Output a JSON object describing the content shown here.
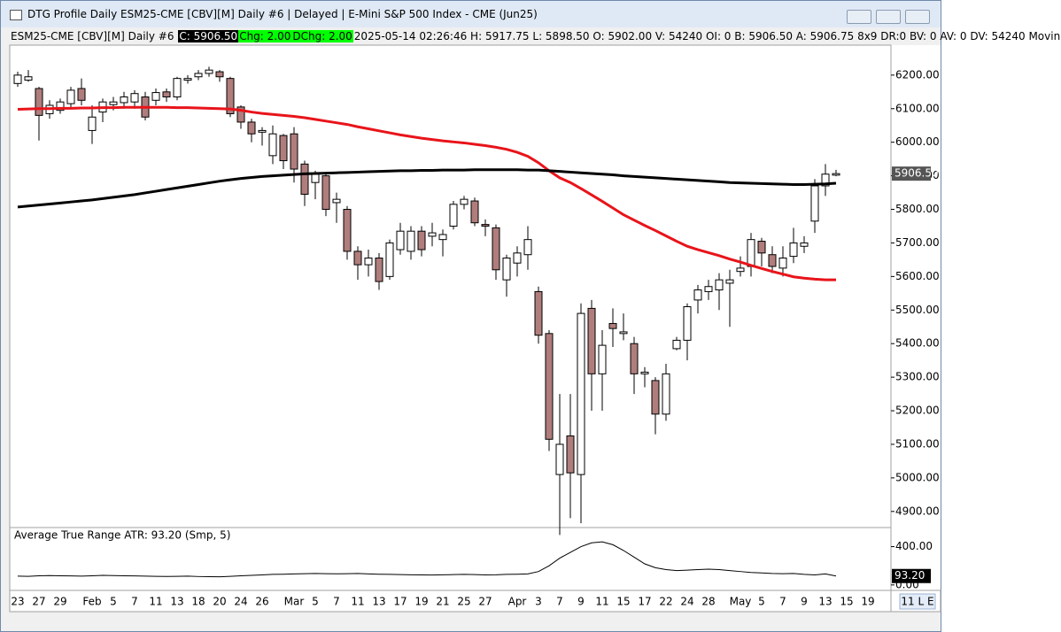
{
  "window": {
    "title": "DTG Profile Daily ESM25-CME [CBV][M]  Daily #6 | Delayed | E-Mini S&P 500 Index - CME (Jun25)"
  },
  "info_bar": {
    "symbol": "ESM25-CME [CBV][M]  Daily #6",
    "close": "C: 5906.50",
    "change": "Chg: 2.00",
    "dchange": "DChg: 2.00",
    "details": "2025-05-14 02:26:46 H: 5917.75 L: 5898.50 O: 5902.00 V: 54240 OI: 0 B: 5906.50 A: 5906.75 8x9 DR:0 BV: 0 AV: 0 DV: 54240 Movin"
  },
  "status": "11 L E",
  "chart_data": [
    {
      "type": "candlestick",
      "categories": [
        "23",
        null,
        "27",
        null,
        "29",
        null,
        null,
        "Feb",
        null,
        "5",
        null,
        "7",
        null,
        "11",
        null,
        "13",
        null,
        "18",
        null,
        "20",
        null,
        "24",
        null,
        "26",
        null,
        null,
        "Mar",
        null,
        "5",
        null,
        "7",
        null,
        "11",
        null,
        "13",
        null,
        "17",
        null,
        "19",
        null,
        "21",
        null,
        "25",
        null,
        "27",
        null,
        null,
        "Apr",
        null,
        "3",
        null,
        "7",
        null,
        "9",
        null,
        "11",
        null,
        "15",
        null,
        "17",
        null,
        "22",
        null,
        "24",
        null,
        "28",
        null,
        null,
        "May",
        null,
        "5",
        null,
        "7",
        null,
        "9",
        null,
        "13",
        null,
        "15",
        null,
        "19"
      ],
      "open": [
        6175,
        6185,
        6160,
        6085,
        6095,
        6115,
        6160,
        6035,
        6090,
        6112,
        6118,
        6120,
        6135,
        6125,
        6150,
        6135,
        6185,
        6195,
        6205,
        6210,
        6190,
        6105,
        6060,
        6030,
        5960,
        6020,
        6025,
        5935,
        5880,
        5900,
        5820,
        5800,
        5675,
        5635,
        5655,
        5600,
        5680,
        5675,
        5735,
        5720,
        5710,
        5750,
        5815,
        5825,
        5755,
        5745,
        5590,
        5640,
        5665,
        5555,
        5430,
        5010,
        5125,
        5010,
        5505,
        5310,
        5460,
        5430,
        5400,
        5310,
        5290,
        5190,
        5385,
        5410,
        5530,
        5555,
        5560,
        5580,
        5615,
        5630,
        5705,
        5665,
        5625,
        5660,
        5690,
        5765,
        5870,
        5902,
        null,
        null,
        null
      ],
      "high": [
        6210,
        6215,
        6165,
        6125,
        6130,
        6165,
        6190,
        6110,
        6130,
        6135,
        6150,
        6155,
        6150,
        6160,
        6160,
        6195,
        6200,
        6215,
        6225,
        6215,
        6195,
        6110,
        6070,
        6045,
        6050,
        6025,
        6045,
        5945,
        5915,
        5910,
        5850,
        5810,
        5690,
        5680,
        5670,
        5710,
        5760,
        5750,
        5750,
        5760,
        5740,
        5825,
        5840,
        5835,
        5770,
        5755,
        5665,
        5690,
        5750,
        5570,
        5440,
        5250,
        5250,
        5520,
        5530,
        5440,
        5505,
        5490,
        5420,
        5330,
        5300,
        5340,
        5420,
        5520,
        5575,
        5590,
        5610,
        5620,
        5660,
        5730,
        5715,
        5690,
        5690,
        5745,
        5720,
        5890,
        5935,
        5917.75,
        null,
        null,
        null
      ],
      "low": [
        6165,
        6180,
        6005,
        6070,
        6085,
        6100,
        6110,
        5995,
        6060,
        6095,
        6100,
        6100,
        6065,
        6110,
        6120,
        6125,
        6175,
        6185,
        6195,
        6180,
        6075,
        6040,
        6000,
        5990,
        5935,
        5920,
        5880,
        5810,
        5830,
        5780,
        5760,
        5650,
        5590,
        5600,
        5560,
        5590,
        5665,
        5650,
        5660,
        5690,
        5660,
        5740,
        5800,
        5750,
        5720,
        5590,
        5540,
        5600,
        5620,
        5400,
        5080,
        4830,
        4880,
        4865,
        5200,
        5200,
        5390,
        5410,
        5250,
        5270,
        5130,
        5170,
        5380,
        5350,
        5490,
        5530,
        5500,
        5450,
        5600,
        5600,
        5630,
        5610,
        5600,
        5640,
        5670,
        5730,
        5840,
        5898.5,
        null,
        null,
        null
      ],
      "close": [
        6200,
        6195,
        6080,
        6110,
        6120,
        6155,
        6125,
        6075,
        6120,
        6120,
        6135,
        6145,
        6075,
        6148,
        6135,
        6190,
        6190,
        6205,
        6215,
        6195,
        6085,
        6060,
        6025,
        6035,
        6025,
        5945,
        5920,
        5845,
        5905,
        5800,
        5830,
        5675,
        5635,
        5655,
        5585,
        5700,
        5735,
        5735,
        5680,
        5730,
        5725,
        5815,
        5830,
        5760,
        5750,
        5620,
        5655,
        5670,
        5710,
        5425,
        5115,
        5100,
        5015,
        5490,
        5310,
        5395,
        5445,
        5435,
        5310,
        5315,
        5190,
        5310,
        5410,
        5510,
        5560,
        5570,
        5590,
        5590,
        5625,
        5710,
        5670,
        5630,
        5655,
        5700,
        5700,
        5870,
        5905,
        5906.5,
        null,
        null,
        null
      ],
      "close_labels": [
        null,
        null,
        null,
        null,
        null,
        null,
        null,
        null,
        null,
        null,
        null,
        null,
        null,
        null,
        null,
        null,
        null,
        null,
        null,
        null,
        null,
        null,
        null,
        null,
        null,
        null,
        null,
        null,
        null,
        null,
        null,
        null,
        null,
        null,
        null,
        null,
        null,
        null,
        null,
        null,
        null,
        null,
        null,
        null,
        null,
        null,
        null,
        null,
        null,
        null,
        null,
        null,
        null,
        null,
        null,
        null,
        null,
        null,
        null,
        null,
        null,
        null,
        null,
        null,
        null,
        null,
        null,
        null,
        null,
        null,
        null,
        null,
        null,
        null,
        null,
        null,
        null,
        "5906.50",
        null,
        null,
        null
      ],
      "up_color": "#ffffff",
      "down_color": "#b07d7d",
      "overlays": [
        {
          "color": "#e8141a",
          "values": [
            6098,
            6099,
            6100,
            6100,
            6101,
            6101,
            6102,
            6102,
            6103,
            6103,
            6104,
            6104,
            6104,
            6104,
            6104,
            6103,
            6103,
            6102,
            6101,
            6100,
            6099,
            6095,
            6090,
            6086,
            6083,
            6080,
            6077,
            6073,
            6068,
            6063,
            6058,
            6053,
            6046,
            6040,
            6034,
            6028,
            6022,
            6017,
            6012,
            6008,
            6004,
            6001,
            5998,
            5994,
            5990,
            5985,
            5979,
            5970,
            5958,
            5939,
            5915,
            5894,
            5880,
            5862,
            5843,
            5824,
            5804,
            5784,
            5768,
            5752,
            5737,
            5721,
            5705,
            5690,
            5680,
            5671,
            5662,
            5652,
            5643,
            5633,
            5624,
            5615,
            5607,
            5599,
            5595,
            5592,
            5590,
            5590,
            null,
            null,
            null
          ]
        },
        {
          "color": "#000000",
          "values": [
            5807,
            5810,
            5813,
            5816,
            5819,
            5822,
            5825,
            5828,
            5832,
            5836,
            5840,
            5844,
            5849,
            5854,
            5859,
            5864,
            5869,
            5874,
            5879,
            5884,
            5888,
            5892,
            5895,
            5898,
            5900,
            5902,
            5904,
            5906,
            5907,
            5908,
            5909,
            5910,
            5911,
            5912,
            5913,
            5914,
            5915,
            5915,
            5916,
            5916,
            5917,
            5917,
            5917,
            5918,
            5918,
            5918,
            5918,
            5918,
            5917,
            5917,
            5915,
            5913,
            5911,
            5909,
            5907,
            5905,
            5903,
            5900,
            5898,
            5896,
            5894,
            5892,
            5890,
            5888,
            5886,
            5884,
            5882,
            5880,
            5879,
            5878,
            5877,
            5876,
            5875,
            5874,
            5874,
            5875,
            5876,
            5878,
            null,
            null,
            null
          ]
        }
      ],
      "ylim": [
        4852,
        6284
      ],
      "yticks": [
        {
          "value": 4900,
          "label": "4900.00"
        },
        {
          "value": 5000,
          "label": "5000.00"
        },
        {
          "value": 5100,
          "label": "5100.00"
        },
        {
          "value": 5200,
          "label": "5200.00"
        },
        {
          "value": 5300,
          "label": "5300.00"
        },
        {
          "value": 5400,
          "label": "5400.00"
        },
        {
          "value": 5500,
          "label": "5500.00"
        },
        {
          "value": 5600,
          "label": "5600.00"
        },
        {
          "value": 5700,
          "label": "5700.00"
        },
        {
          "value": 5800,
          "label": "5800.00"
        },
        {
          "value": 5900,
          "label": "5900.00"
        },
        {
          "value": 6000,
          "label": "6000.00"
        },
        {
          "value": 6100,
          "label": "6100.00"
        },
        {
          "value": 6200,
          "label": "6200.00"
        }
      ]
    },
    {
      "type": "line",
      "title": "Average True Range  ATR: 93.20 (Smp, 5)",
      "color": "#000000",
      "values": [
        92,
        90,
        95,
        98,
        96,
        94,
        92,
        95,
        100,
        98,
        96,
        94,
        92,
        90,
        88,
        90,
        92,
        88,
        86,
        85,
        90,
        95,
        100,
        105,
        110,
        112,
        115,
        118,
        120,
        118,
        116,
        118,
        120,
        115,
        112,
        110,
        108,
        106,
        105,
        104,
        106,
        108,
        110,
        108,
        105,
        106,
        110,
        112,
        115,
        140,
        200,
        280,
        340,
        400,
        440,
        450,
        420,
        360,
        290,
        220,
        180,
        160,
        150,
        155,
        160,
        165,
        160,
        150,
        140,
        130,
        125,
        120,
        118,
        120,
        110,
        105,
        115,
        93.2
      ],
      "value_labels": [
        null,
        null,
        null,
        null,
        null,
        null,
        null,
        null,
        null,
        null,
        null,
        null,
        null,
        null,
        null,
        null,
        null,
        null,
        null,
        null,
        null,
        null,
        null,
        null,
        null,
        null,
        null,
        null,
        null,
        null,
        null,
        null,
        null,
        null,
        null,
        null,
        null,
        null,
        null,
        null,
        null,
        null,
        null,
        null,
        null,
        null,
        null,
        null,
        null,
        null,
        null,
        null,
        null,
        null,
        null,
        null,
        null,
        null,
        null,
        null,
        null,
        null,
        null,
        null,
        null,
        null,
        null,
        null,
        null,
        null,
        null,
        null,
        null,
        null,
        null,
        null,
        null,
        "93.20"
      ],
      "ylim": [
        -57,
        590
      ],
      "yticks": [
        {
          "value": 400,
          "label": "400.00"
        },
        {
          "value": 0,
          "label": "0.00"
        }
      ]
    }
  ]
}
